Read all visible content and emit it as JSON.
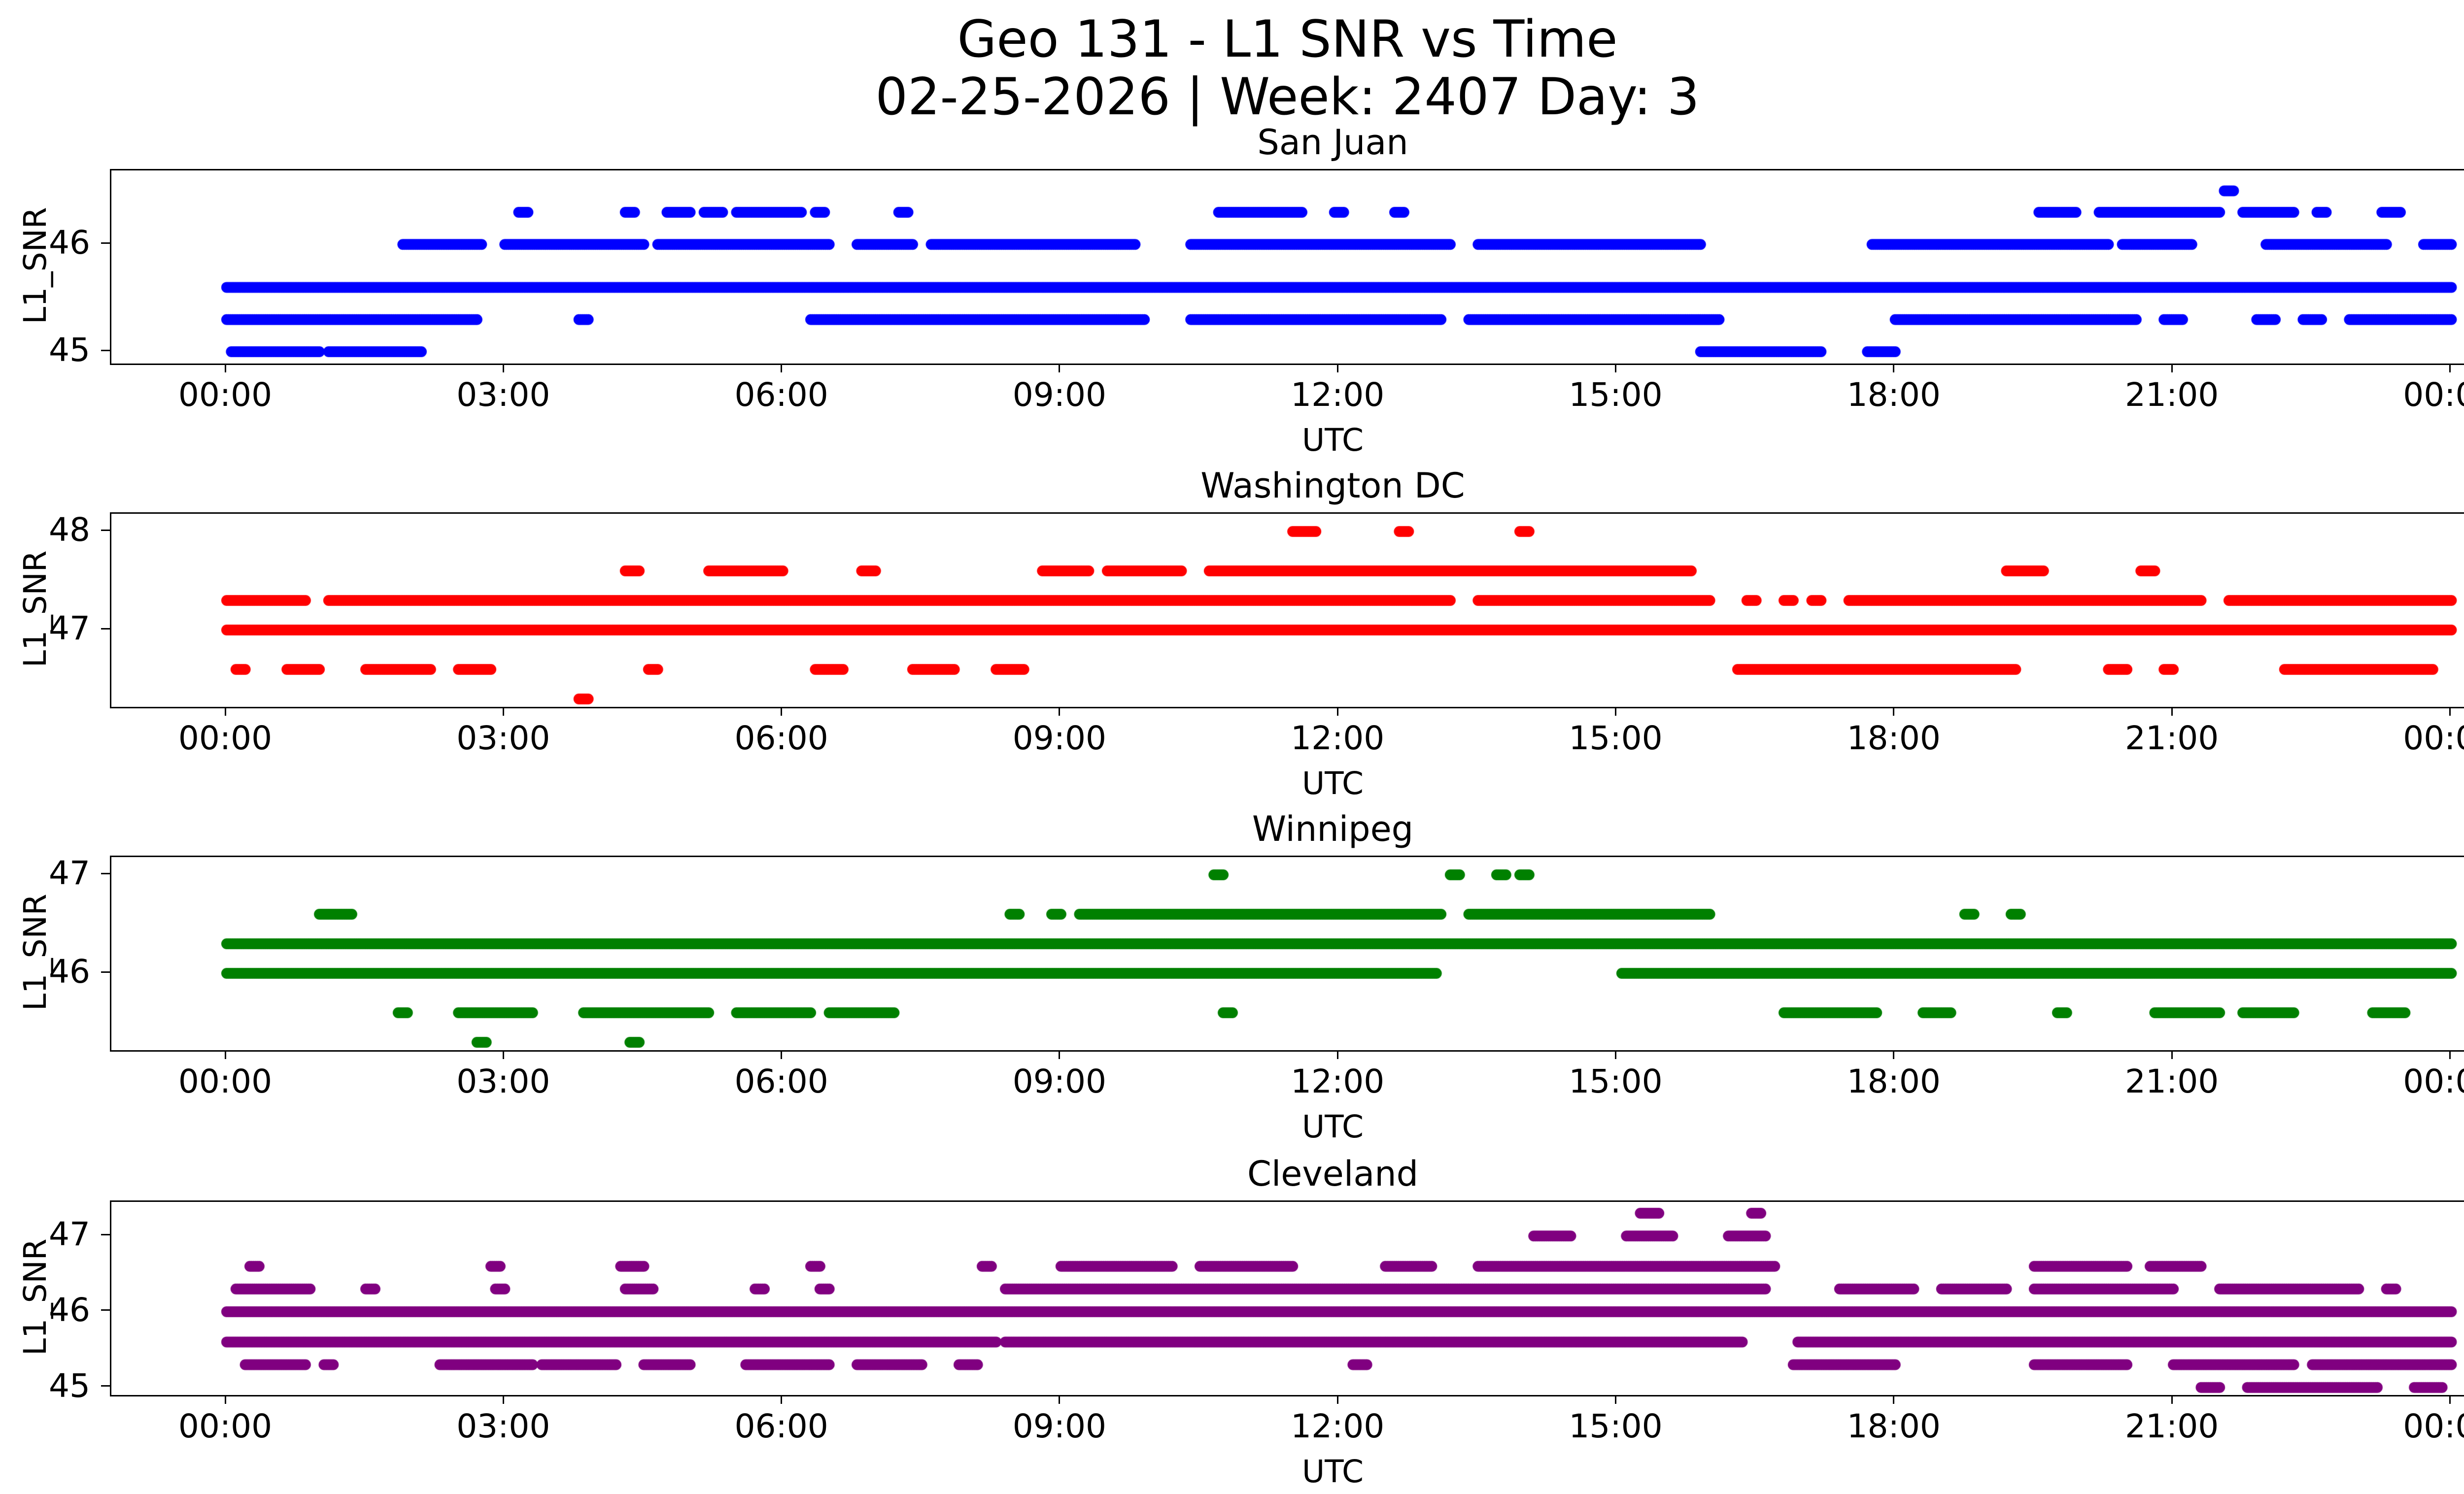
{
  "chart_data": {
    "type": "scatter",
    "title": "Geo 131 - L1 SNR vs Time",
    "subtitle": "02-25-2026 | Week: 2407 Day: 3",
    "xlabel": "UTC",
    "ylabel": "L1_SNR",
    "grid": false,
    "marker": "circle",
    "legend": null,
    "x_range_hours": [
      0,
      24
    ],
    "x_ticks": [
      "00:00",
      "03:00",
      "06:00",
      "09:00",
      "12:00",
      "15:00",
      "18:00",
      "21:00",
      "00:00"
    ],
    "x_tick_hours": [
      0,
      3,
      6,
      9,
      12,
      15,
      18,
      21,
      24
    ],
    "subplots": [
      {
        "station": "San Juan",
        "color": "#0000ff",
        "ylim": [
          44.89,
          46.69
        ],
        "y_tick_values": [
          45,
          46
        ],
        "y_tick_labels": [
          "45",
          "46"
        ],
        "snr_levels": [
          45.0,
          45.3,
          45.6,
          46.0,
          46.3,
          46.5
        ],
        "bands": [
          {
            "snr": 46.5,
            "segments": [
              [
                21.55,
                21.65
              ]
            ]
          },
          {
            "snr": 46.3,
            "segments": [
              [
                3.15,
                3.25
              ],
              [
                4.3,
                4.4
              ],
              [
                4.75,
                5.0
              ],
              [
                5.15,
                5.35
              ],
              [
                5.5,
                6.2
              ],
              [
                6.35,
                6.45
              ],
              [
                7.25,
                7.35
              ],
              [
                10.7,
                11.6
              ],
              [
                11.95,
                12.05
              ],
              [
                12.6,
                12.7
              ],
              [
                19.55,
                19.95
              ],
              [
                20.2,
                21.5
              ],
              [
                21.75,
                22.3
              ],
              [
                22.55,
                22.65
              ],
              [
                23.25,
                23.45
              ]
            ]
          },
          {
            "snr": 46.0,
            "segments": [
              [
                1.9,
                2.75
              ],
              [
                3.0,
                4.5
              ],
              [
                4.65,
                6.5
              ],
              [
                6.8,
                7.4
              ],
              [
                7.6,
                9.8
              ],
              [
                10.4,
                13.2
              ],
              [
                13.5,
                15.9
              ],
              [
                17.75,
                20.3
              ],
              [
                20.45,
                21.2
              ],
              [
                22.0,
                23.3
              ],
              [
                23.7,
                24.0
              ]
            ]
          },
          {
            "snr": 45.6,
            "segments": [
              [
                0.0,
                24.0
              ]
            ]
          },
          {
            "snr": 45.3,
            "segments": [
              [
                0.0,
                2.7
              ],
              [
                3.8,
                3.9
              ],
              [
                6.3,
                9.9
              ],
              [
                10.4,
                13.1
              ],
              [
                13.4,
                16.1
              ],
              [
                18.0,
                20.6
              ],
              [
                20.9,
                21.1
              ],
              [
                21.9,
                22.1
              ],
              [
                22.4,
                22.6
              ],
              [
                22.9,
                24.0
              ]
            ]
          },
          {
            "snr": 45.0,
            "segments": [
              [
                0.05,
                1.0
              ],
              [
                1.1,
                2.1
              ],
              [
                15.9,
                17.2
              ],
              [
                17.7,
                18.0
              ]
            ]
          }
        ]
      },
      {
        "station": "Washington DC",
        "color": "#ff0000",
        "ylim": [
          46.22,
          48.18
        ],
        "y_tick_values": [
          47,
          48
        ],
        "y_tick_labels": [
          "47",
          "48"
        ],
        "snr_levels": [
          46.3,
          46.6,
          47.0,
          47.3,
          47.6,
          48.0
        ],
        "bands": [
          {
            "snr": 48.0,
            "segments": [
              [
                11.5,
                11.75
              ],
              [
                12.65,
                12.75
              ],
              [
                13.95,
                14.05
              ]
            ]
          },
          {
            "snr": 47.6,
            "segments": [
              [
                4.3,
                4.45
              ],
              [
                5.2,
                6.0
              ],
              [
                6.85,
                7.0
              ],
              [
                8.8,
                9.3
              ],
              [
                9.5,
                10.3
              ],
              [
                10.6,
                15.8
              ],
              [
                19.2,
                19.6
              ],
              [
                20.65,
                20.8
              ]
            ]
          },
          {
            "snr": 47.3,
            "segments": [
              [
                0.0,
                0.85
              ],
              [
                1.1,
                13.2
              ],
              [
                13.5,
                16.0
              ],
              [
                16.4,
                16.5
              ],
              [
                16.8,
                16.9
              ],
              [
                17.1,
                17.2
              ],
              [
                17.5,
                21.3
              ],
              [
                21.6,
                24.0
              ]
            ]
          },
          {
            "snr": 47.0,
            "segments": [
              [
                0.0,
                24.0
              ]
            ]
          },
          {
            "snr": 46.6,
            "segments": [
              [
                0.1,
                0.2
              ],
              [
                0.65,
                1.0
              ],
              [
                1.5,
                2.2
              ],
              [
                2.5,
                2.85
              ],
              [
                4.55,
                4.65
              ],
              [
                6.35,
                6.65
              ],
              [
                7.4,
                7.85
              ],
              [
                8.3,
                8.6
              ],
              [
                16.3,
                19.3
              ],
              [
                20.3,
                20.5
              ],
              [
                20.9,
                21.0
              ],
              [
                22.2,
                23.8
              ]
            ]
          },
          {
            "snr": 46.3,
            "segments": [
              [
                3.8,
                3.9
              ]
            ]
          }
        ]
      },
      {
        "station": "Winnipeg",
        "color": "#008000",
        "ylim": [
          45.22,
          47.18
        ],
        "y_tick_values": [
          46,
          47
        ],
        "y_tick_labels": [
          "46",
          "47"
        ],
        "snr_levels": [
          45.3,
          45.6,
          46.0,
          46.3,
          46.6,
          47.0
        ],
        "bands": [
          {
            "snr": 47.0,
            "segments": [
              [
                10.65,
                10.75
              ],
              [
                13.2,
                13.3
              ],
              [
                13.7,
                13.8
              ],
              [
                13.95,
                14.05
              ]
            ]
          },
          {
            "snr": 46.6,
            "segments": [
              [
                1.0,
                1.35
              ],
              [
                8.45,
                8.55
              ],
              [
                8.9,
                9.0
              ],
              [
                9.2,
                13.1
              ],
              [
                13.4,
                16.0
              ],
              [
                18.75,
                18.85
              ],
              [
                19.25,
                19.35
              ]
            ]
          },
          {
            "snr": 46.3,
            "segments": [
              [
                0.0,
                24.0
              ]
            ]
          },
          {
            "snr": 46.0,
            "segments": [
              [
                0.0,
                13.05
              ],
              [
                15.05,
                24.0
              ]
            ]
          },
          {
            "snr": 45.6,
            "segments": [
              [
                1.85,
                1.95
              ],
              [
                2.5,
                3.3
              ],
              [
                3.85,
                5.2
              ],
              [
                5.5,
                6.3
              ],
              [
                6.5,
                7.2
              ],
              [
                10.75,
                10.85
              ],
              [
                16.8,
                17.8
              ],
              [
                18.3,
                18.6
              ],
              [
                19.75,
                19.85
              ],
              [
                20.8,
                21.5
              ],
              [
                21.75,
                22.3
              ],
              [
                23.15,
                23.5
              ]
            ]
          },
          {
            "snr": 45.3,
            "segments": [
              [
                2.7,
                2.8
              ],
              [
                4.35,
                4.45
              ]
            ]
          }
        ]
      },
      {
        "station": "Cleveland",
        "color": "#800080",
        "ylim": [
          44.9,
          47.45
        ],
        "y_tick_values": [
          45,
          46,
          47
        ],
        "y_tick_labels": [
          "45",
          "46",
          "47"
        ],
        "snr_levels": [
          45.0,
          45.3,
          45.6,
          46.0,
          46.3,
          46.6,
          47.0,
          47.3
        ],
        "bands": [
          {
            "snr": 47.3,
            "segments": [
              [
                15.25,
                15.45
              ],
              [
                16.45,
                16.55
              ]
            ]
          },
          {
            "snr": 47.0,
            "segments": [
              [
                14.1,
                14.5
              ],
              [
                15.1,
                15.6
              ],
              [
                16.2,
                16.6
              ]
            ]
          },
          {
            "snr": 46.6,
            "segments": [
              [
                0.25,
                0.35
              ],
              [
                2.85,
                2.95
              ],
              [
                4.25,
                4.5
              ],
              [
                6.3,
                6.4
              ],
              [
                8.15,
                8.25
              ],
              [
                9.0,
                10.2
              ],
              [
                10.5,
                11.5
              ],
              [
                12.5,
                13.0
              ],
              [
                13.5,
                16.7
              ],
              [
                19.5,
                20.5
              ],
              [
                20.75,
                21.3
              ]
            ]
          },
          {
            "snr": 46.3,
            "segments": [
              [
                0.1,
                0.9
              ],
              [
                1.5,
                1.6
              ],
              [
                2.9,
                3.0
              ],
              [
                4.3,
                4.6
              ],
              [
                5.7,
                5.8
              ],
              [
                6.4,
                6.5
              ],
              [
                8.4,
                16.6
              ],
              [
                17.4,
                18.2
              ],
              [
                18.5,
                19.2
              ],
              [
                19.5,
                21.0
              ],
              [
                21.5,
                23.0
              ],
              [
                23.3,
                23.4
              ]
            ]
          },
          {
            "snr": 46.0,
            "segments": [
              [
                0.0,
                24.0
              ]
            ]
          },
          {
            "snr": 45.6,
            "segments": [
              [
                0.0,
                8.3
              ],
              [
                8.4,
                16.35
              ],
              [
                16.95,
                24.0
              ]
            ]
          },
          {
            "snr": 45.3,
            "segments": [
              [
                0.2,
                0.85
              ],
              [
                1.05,
                1.15
              ],
              [
                2.3,
                3.3
              ],
              [
                3.4,
                4.2
              ],
              [
                4.5,
                5.0
              ],
              [
                5.6,
                6.5
              ],
              [
                6.8,
                7.5
              ],
              [
                7.9,
                8.1
              ],
              [
                12.15,
                12.3
              ],
              [
                16.9,
                18.0
              ],
              [
                19.5,
                20.5
              ],
              [
                21.0,
                22.3
              ],
              [
                22.5,
                24.0
              ]
            ]
          },
          {
            "snr": 45.0,
            "segments": [
              [
                21.3,
                21.5
              ],
              [
                21.8,
                23.2
              ],
              [
                23.6,
                23.9
              ]
            ]
          }
        ]
      }
    ]
  }
}
